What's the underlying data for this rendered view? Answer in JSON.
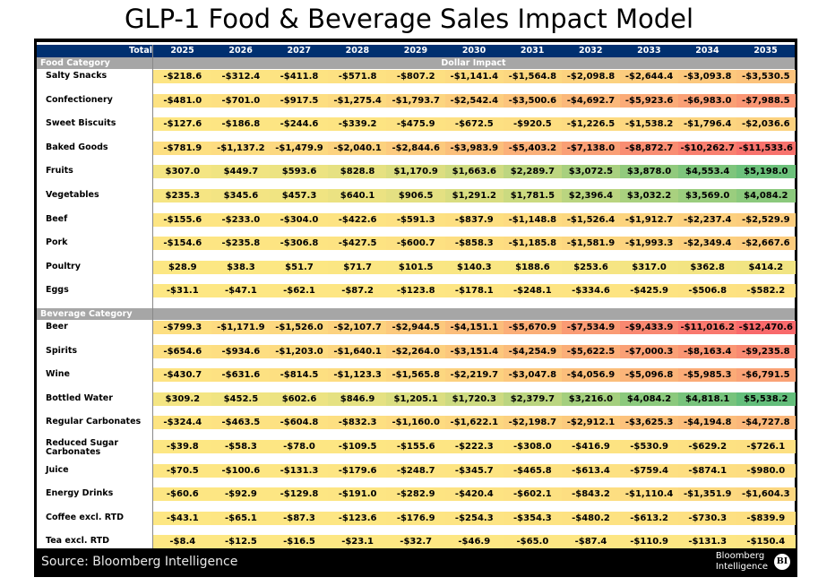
{
  "title": "GLP-1 Food & Beverage Sales Impact Model",
  "footer": {
    "source": "Source: Bloomberg Intelligence",
    "brand_line1": "Bloomberg",
    "brand_line2": "Intelligence",
    "brand_badge": "BI"
  },
  "colors": {
    "header_bg": "#003070",
    "category_bg": "#a6a6a6",
    "scale_neutral": "#fde783",
    "scale_negative": "#f8696b",
    "scale_positive": "#63be7b"
  },
  "chart_data": {
    "type": "heatmap",
    "title": "GLP-1 Food & Beverage Sales Impact Model",
    "corner_label": "Total",
    "unit_label": "Dollar Impact",
    "columns": [
      "2025",
      "2026",
      "2027",
      "2028",
      "2029",
      "2030",
      "2031",
      "2032",
      "2033",
      "2034",
      "2035"
    ],
    "groups": [
      {
        "name": "Food Category",
        "rows": [
          {
            "label": "Salty Snacks",
            "values": [
              -218.6,
              -312.4,
              -411.8,
              -571.8,
              -807.2,
              -1141.4,
              -1564.8,
              -2098.8,
              -2644.4,
              -3093.8,
              -3530.5
            ]
          },
          {
            "label": "Confectionery",
            "values": [
              -481.0,
              -701.0,
              -917.5,
              -1275.4,
              -1793.7,
              -2542.4,
              -3500.6,
              -4692.7,
              -5923.6,
              -6983.0,
              -7988.5
            ]
          },
          {
            "label": "Sweet Biscuits",
            "values": [
              -127.6,
              -186.8,
              -244.6,
              -339.2,
              -475.9,
              -672.5,
              -920.5,
              -1226.5,
              -1538.2,
              -1796.4,
              -2036.6
            ]
          },
          {
            "label": "Baked Goods",
            "values": [
              -781.9,
              -1137.2,
              -1479.9,
              -2040.1,
              -2844.6,
              -3983.9,
              -5403.2,
              -7138.0,
              -8872.7,
              -10262.7,
              -11533.6
            ]
          },
          {
            "label": "Fruits",
            "values": [
              307.0,
              449.7,
              593.6,
              828.8,
              1170.9,
              1663.6,
              2289.7,
              3072.5,
              3878.0,
              4553.4,
              5198.0
            ]
          },
          {
            "label": "Vegetables",
            "values": [
              235.3,
              345.6,
              457.3,
              640.1,
              906.5,
              1291.2,
              1781.5,
              2396.4,
              3032.2,
              3569.0,
              4084.2
            ]
          },
          {
            "label": "Beef",
            "values": [
              -155.6,
              -233.0,
              -304.0,
              -422.6,
              -591.3,
              -837.9,
              -1148.8,
              -1526.4,
              -1912.7,
              -2237.4,
              -2529.9
            ]
          },
          {
            "label": "Pork",
            "values": [
              -154.6,
              -235.8,
              -306.8,
              -427.5,
              -600.7,
              -858.3,
              -1185.8,
              -1581.9,
              -1993.3,
              -2349.4,
              -2667.6
            ]
          },
          {
            "label": "Poultry",
            "values": [
              28.9,
              38.3,
              51.7,
              71.7,
              101.5,
              140.3,
              188.6,
              253.6,
              317.0,
              362.8,
              414.2
            ]
          },
          {
            "label": "Eggs",
            "values": [
              -31.1,
              -47.1,
              -62.1,
              -87.2,
              -123.8,
              -178.1,
              -248.1,
              -334.6,
              -425.9,
              -506.8,
              -582.2
            ]
          }
        ]
      },
      {
        "name": "Beverage Category",
        "rows": [
          {
            "label": "Beer",
            "values": [
              -799.3,
              -1171.9,
              -1526.0,
              -2107.7,
              -2944.5,
              -4151.1,
              -5670.9,
              -7534.9,
              -9433.9,
              -11016.2,
              -12470.6
            ]
          },
          {
            "label": "Spirits",
            "values": [
              -654.6,
              -934.6,
              -1203.0,
              -1640.1,
              -2264.0,
              -3151.4,
              -4254.9,
              -5622.5,
              -7000.3,
              -8163.4,
              -9235.8
            ]
          },
          {
            "label": "Wine",
            "values": [
              -430.7,
              -631.6,
              -814.5,
              -1123.3,
              -1565.8,
              -2219.7,
              -3047.8,
              -4056.9,
              -5096.8,
              -5985.3,
              -6791.5
            ]
          },
          {
            "label": "Bottled Water",
            "values": [
              309.2,
              452.5,
              602.6,
              846.9,
              1205.1,
              1720.3,
              2379.7,
              3216.0,
              4084.2,
              4818.1,
              5538.2
            ]
          },
          {
            "label": "Regular Carbonates",
            "values": [
              -324.4,
              -463.5,
              -604.8,
              -832.3,
              -1160.0,
              -1622.1,
              -2198.7,
              -2912.1,
              -3625.3,
              -4194.8,
              -4727.8
            ]
          },
          {
            "label": "Reduced Sugar Carbonates",
            "values": [
              -39.8,
              -58.3,
              -78.0,
              -109.5,
              -155.6,
              -222.3,
              -308.0,
              -416.9,
              -530.9,
              -629.2,
              -726.1
            ]
          },
          {
            "label": "Juice",
            "values": [
              -70.5,
              -100.6,
              -131.3,
              -179.6,
              -248.7,
              -345.7,
              -465.8,
              -613.4,
              -759.4,
              -874.1,
              -980.0
            ]
          },
          {
            "label": "Energy Drinks",
            "values": [
              -60.6,
              -92.9,
              -129.8,
              -191.0,
              -282.9,
              -420.4,
              -602.1,
              -843.2,
              -1110.4,
              -1351.9,
              -1604.3
            ]
          },
          {
            "label": "Coffee excl. RTD",
            "values": [
              -43.1,
              -65.1,
              -87.3,
              -123.6,
              -176.9,
              -254.3,
              -354.3,
              -480.2,
              -613.2,
              -730.3,
              -839.9
            ]
          },
          {
            "label": "Tea excl. RTD",
            "values": [
              -8.4,
              -12.5,
              -16.5,
              -23.1,
              -32.7,
              -46.9,
              -65.0,
              -87.4,
              -110.9,
              -131.3,
              -150.4
            ]
          }
        ]
      }
    ]
  }
}
